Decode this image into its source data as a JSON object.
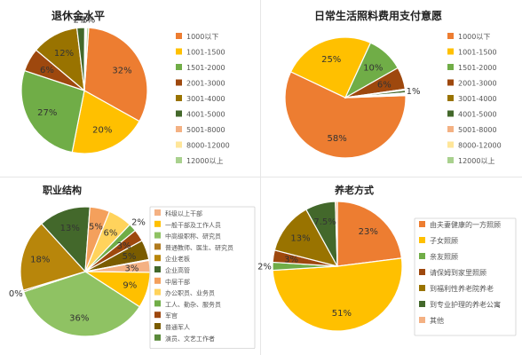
{
  "chart_data": [
    {
      "type": "pie",
      "title": "退休金水平",
      "categories": [
        "1000以下",
        "1001-1500",
        "1501-2000",
        "2001-3000",
        "3001-4000",
        "4001-5000",
        "5001-8000",
        "8000-12000",
        "12000以上"
      ],
      "values": [
        32,
        20,
        27,
        6,
        12,
        2,
        0.2,
        0.3,
        0.5
      ],
      "labels": [
        "32%",
        "20%",
        "27%",
        "6%",
        "12%",
        "2%",
        "",
        "",
        "1%"
      ],
      "colors": [
        "#ED7D31",
        "#FFC000",
        "#70AD47",
        "#9E480E",
        "#997300",
        "#43682B",
        "#F4B183",
        "#FFE699",
        "#A9D18E"
      ],
      "legend": "right"
    },
    {
      "type": "pie",
      "title": "日常生活照料费用支付意愿",
      "categories": [
        "1000以下",
        "1001-1500",
        "1501-2000",
        "2001-3000",
        "3001-4000",
        "4001-5000",
        "5001-8000",
        "8000-12000",
        "12000以上"
      ],
      "values": [
        58,
        25,
        10,
        6,
        0.3,
        0.7,
        0.2,
        0.2,
        0.3
      ],
      "labels": [
        "58%",
        "25%",
        "10%",
        "6%",
        "",
        "1%",
        "",
        "",
        ""
      ],
      "colors": [
        "#ED7D31",
        "#FFC000",
        "#70AD47",
        "#9E480E",
        "#997300",
        "#43682B",
        "#F4B183",
        "#FFE699",
        "#A9D18E"
      ],
      "legend": "right"
    },
    {
      "type": "pie",
      "title": "职业结构",
      "categories": [
        "科级以上干部",
        "一般干部及工作人员",
        "中高级职称、研究员",
        "普通教师、医生、研究员",
        "企业老板",
        "企业高管",
        "中层干部",
        "办公职员、业务员",
        "工人、勤杂、服务员",
        "军官",
        "普通军人",
        "演员、文艺工作者"
      ],
      "values": [
        3,
        9,
        36,
        0.4,
        18,
        13,
        5,
        6,
        2,
        3,
        5,
        0.2
      ],
      "labels": [
        "3%",
        "9%",
        "36%",
        "0%",
        "18%",
        "13%",
        "5%",
        "6%",
        "2%",
        "3%",
        "5%",
        ""
      ],
      "colors": [
        "#F4B183",
        "#FFC000",
        "#8FC263",
        "#B07A1E",
        "#B8860B",
        "#43682B",
        "#F4A05C",
        "#FFD35C",
        "#70AD47",
        "#9E480E",
        "#7A5C00",
        "#5A8A3A"
      ],
      "legend": "right"
    },
    {
      "type": "pie",
      "title": "养老方式",
      "categories": [
        "由夫妻健康的一方照顾",
        "子女照顾",
        "亲友照顾",
        "请保姆到家里照顾",
        "到福利性养老院养老",
        "到专业护理的养老公寓",
        "其他"
      ],
      "values": [
        23,
        51,
        2,
        3,
        13,
        7.5,
        0.5
      ],
      "labels": [
        "23%",
        "51%",
        "2%",
        "3%",
        "13%",
        "7.5%",
        ""
      ],
      "colors": [
        "#ED7D31",
        "#FFC000",
        "#70AD47",
        "#9E480E",
        "#997300",
        "#43682B",
        "#F4B183"
      ],
      "legend": "right"
    }
  ]
}
